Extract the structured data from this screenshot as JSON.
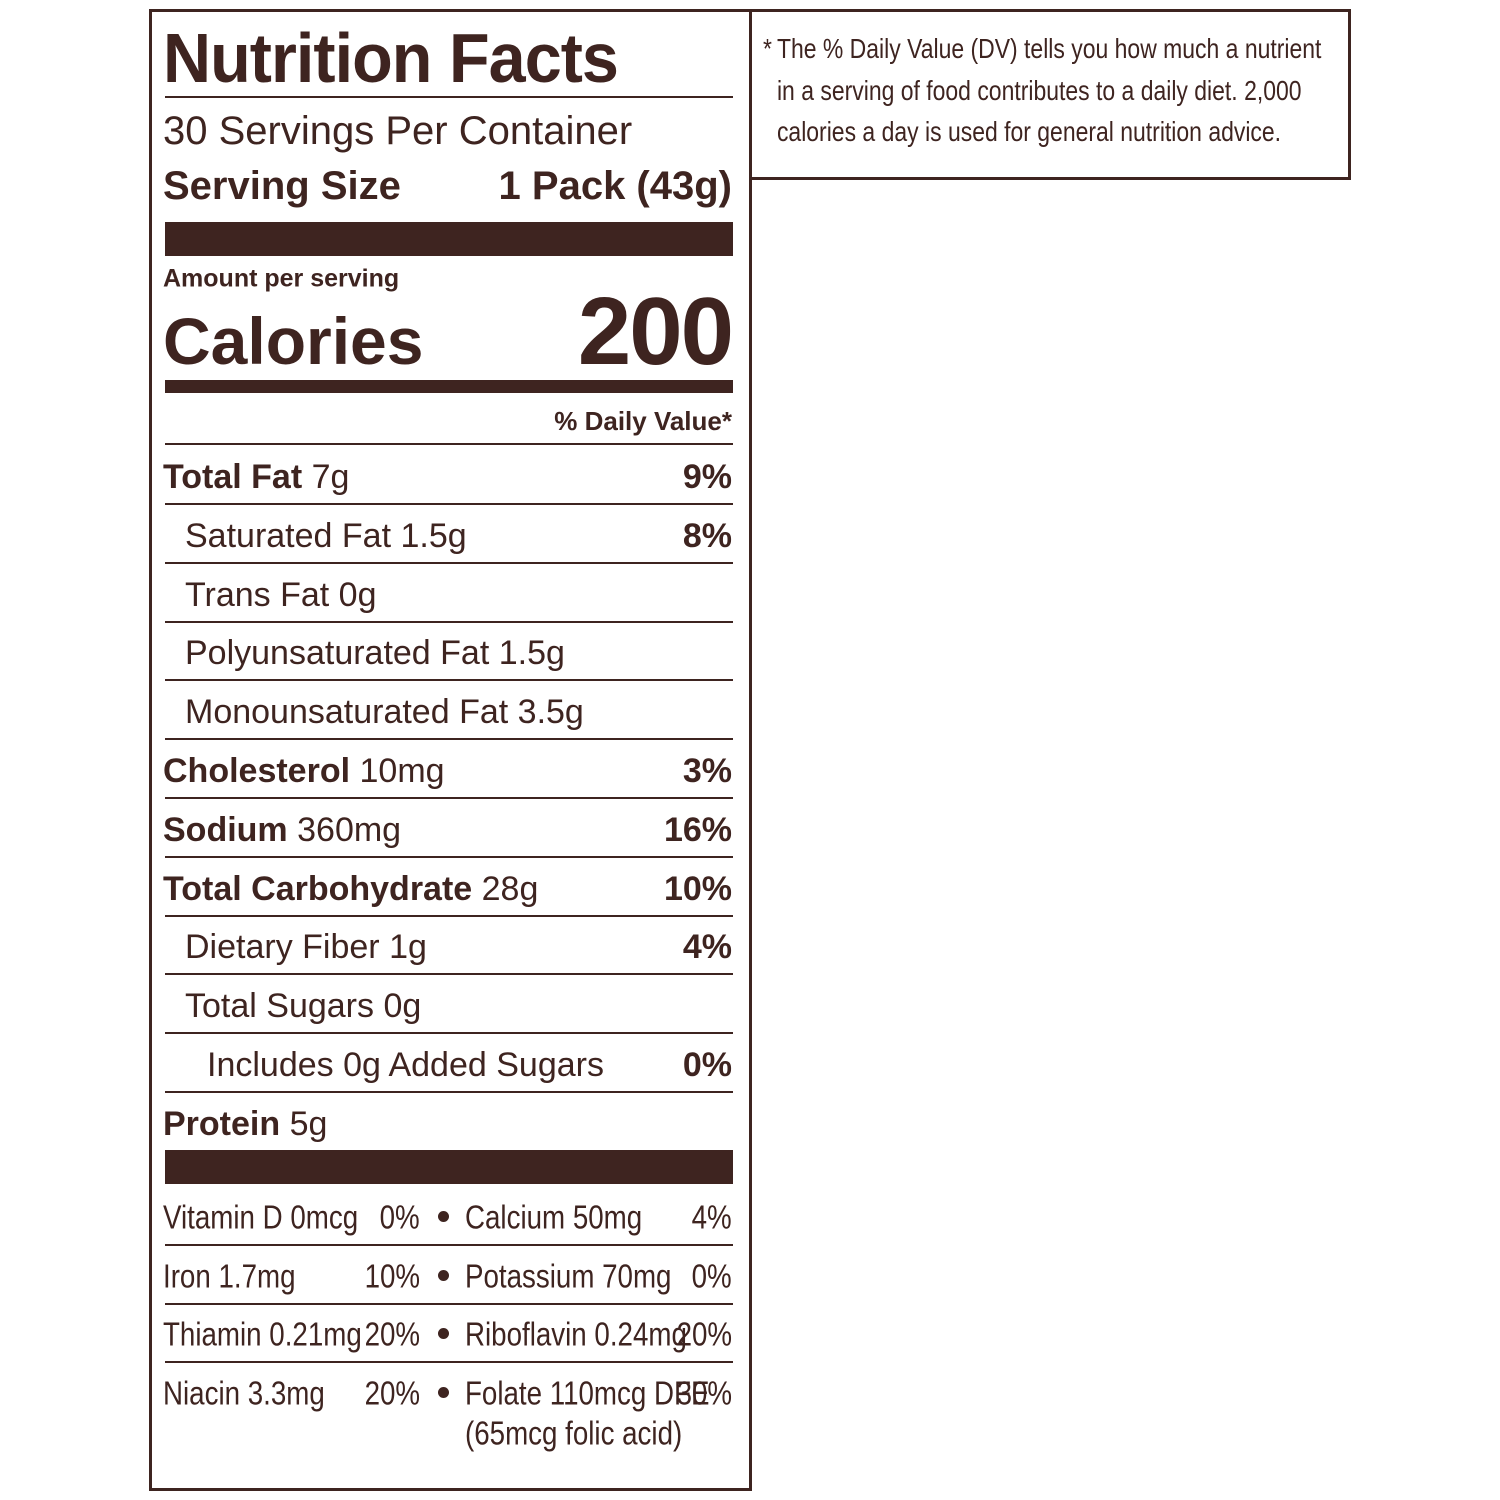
{
  "label": {
    "title": "Nutrition Facts",
    "servings": "30 Servings Per Container",
    "serving_size": {
      "label": "Serving Size",
      "value": "1 Pack (43g)"
    },
    "amount_per_serving": "Amount per serving",
    "calories": {
      "label": "Calories",
      "value": "200"
    },
    "daily_value_header": "% Daily Value*",
    "nutrients": [
      {
        "name": "Total Fat",
        "amount": "7g",
        "dv": "9%"
      },
      {
        "name": "Saturated Fat",
        "amount": "1.5g",
        "dv": "8%"
      },
      {
        "name": "Trans Fat",
        "amount": "0g"
      },
      {
        "name": "Polyunsaturated Fat",
        "amount": "1.5g"
      },
      {
        "name": "Monounsaturated Fat",
        "amount": "3.5g"
      },
      {
        "name": "Cholesterol",
        "amount": "10mg",
        "dv": "3%"
      },
      {
        "name": "Sodium",
        "amount": "360mg",
        "dv": "16%"
      },
      {
        "name": "Total Carbohydrate",
        "amount": "28g",
        "dv": "10%"
      },
      {
        "name": "Dietary Fiber",
        "amount": "1g",
        "dv": "4%"
      },
      {
        "name": "Total Sugars",
        "amount": "0g"
      },
      {
        "name": "Includes 0g Added Sugars",
        "dv": "0%"
      },
      {
        "name": "Protein",
        "amount": "5g"
      }
    ],
    "vitamins": [
      [
        {
          "name": "Vitamin D 0mcg",
          "dv": "0%"
        },
        {
          "name": "Calcium 50mg",
          "dv": "4%"
        }
      ],
      [
        {
          "name": "Iron 1.7mg",
          "dv": "10%"
        },
        {
          "name": "Potassium 70mg",
          "dv": "0%"
        }
      ],
      [
        {
          "name": "Thiamin 0.21mg",
          "dv": "20%"
        },
        {
          "name": "Riboflavin 0.24mg",
          "dv": "20%"
        }
      ],
      [
        {
          "name": "Niacin 3.3mg",
          "dv": "20%"
        },
        {
          "name": "Folate 110mcg DFE",
          "dv": "30%",
          "note": "(65mcg folic acid)"
        }
      ]
    ]
  },
  "footnote": {
    "marker": "*",
    "text": "The % Daily Value (DV) tells you how much a nutrient in a serving of food contributes to a daily diet. 2,000 calories a day is used for general nutrition advice."
  }
}
